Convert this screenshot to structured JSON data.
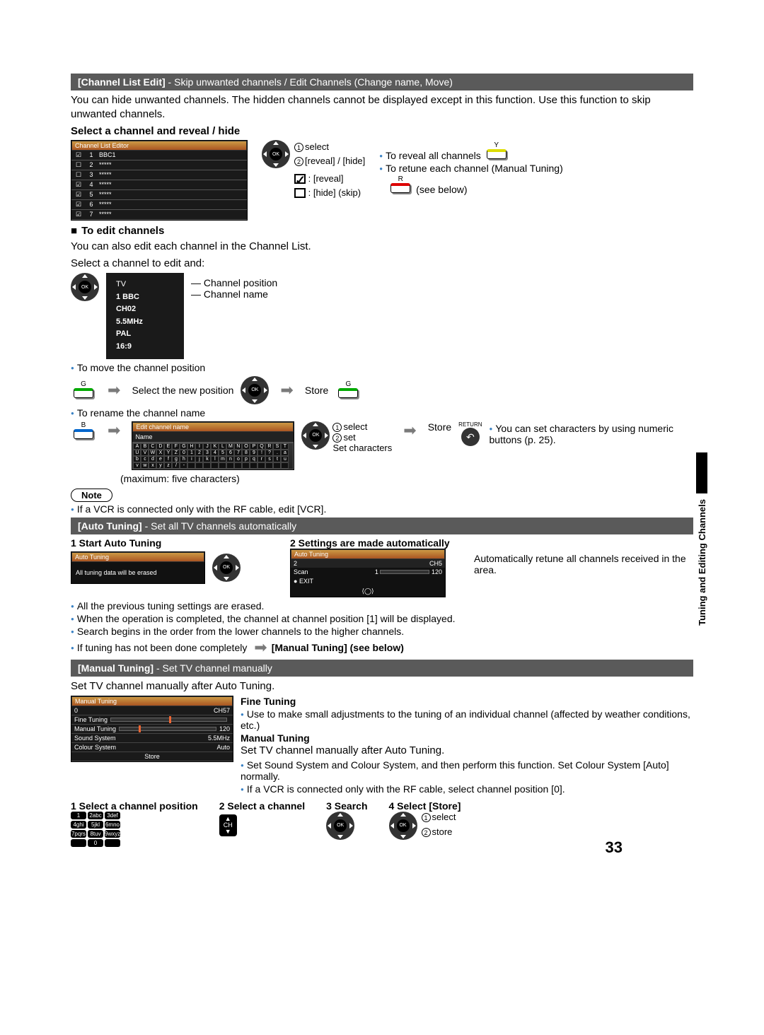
{
  "page_number": "33",
  "side_tab": "Tuning and Editing Channels",
  "header1": {
    "title": "[Channel List Edit]",
    "desc": " - Skip unwanted channels / Edit Channels (Change name, Move)"
  },
  "intro": "You can hide unwanted channels. The hidden channels cannot be displayed except in this function. Use this function to skip unwanted channels.",
  "sect1_title": "Select a channel and reveal / hide",
  "channel_editor": {
    "title": "Channel List Editor",
    "title_bg": "#b8863b",
    "rows": [
      {
        "i": "☑",
        "n": "1",
        "name": "BBC1"
      },
      {
        "i": "☐",
        "n": "2",
        "name": "*****"
      },
      {
        "i": "☐",
        "n": "3",
        "name": "*****"
      },
      {
        "i": "☑",
        "n": "4",
        "name": "*****"
      },
      {
        "i": "☑",
        "n": "5",
        "name": "*****"
      },
      {
        "i": "☑",
        "n": "6",
        "name": "*****"
      },
      {
        "i": "☑",
        "n": "7",
        "name": "*****"
      }
    ]
  },
  "reveal_hide": {
    "l1": "select",
    "l2": "[reveal] / [hide]",
    "reveal": ": [reveal]",
    "hide": ": [hide] (skip)",
    "r1": "To reveal all channels",
    "r2": "To retune each channel (Manual Tuning)",
    "r3": "(see below)"
  },
  "edit_title": "To edit channels",
  "edit_intro1": "You can also edit each channel in the Channel List.",
  "edit_intro2": "Select a channel to edit and:",
  "edit_box": {
    "top": "TV",
    "line1": "1  BBC",
    "ch": "CH02",
    "mhz": "5.5MHz",
    "pal": "PAL",
    "ratio": "16:9"
  },
  "edit_ann1": "Channel position",
  "edit_ann2": "Channel name",
  "move_bullet": "To move the channel position",
  "move_text1": "Select the new position",
  "move_text2": "Store",
  "rename_bullet": "To rename the channel name",
  "rename_box_title": "Edit channel name",
  "rename_box_sub": "Name",
  "rename_max": "(maximum: five characters)",
  "rename_ann1": "select",
  "rename_ann2": "set",
  "rename_ann3": "Set characters",
  "rename_store": "Store",
  "rename_tip1": "You can set characters by using numeric buttons (p. 25).",
  "rename_return": "RETURN",
  "note_label": "Note",
  "note_text": "If a VCR is connected only with the RF cable, edit [VCR].",
  "header2": {
    "title": "[Auto Tuning]",
    "desc": " - Set all TV channels automatically"
  },
  "at_step1_title": "1 Start Auto Tuning",
  "at_box1_title": "Auto Tuning",
  "at_box1_text": "All tuning data will be erased",
  "at_step2_title": "2 Settings are made automatically",
  "at_box2_title": "Auto Tuning",
  "at_box2_scan": "Scan",
  "at_box2_ch": "CH5",
  "at_box2_val": "1",
  "at_box2_max": "120",
  "at_box2_exit": "EXIT",
  "at_right": "Automatically retune all channels received in the area.",
  "at_b1": "All the previous tuning settings are erased.",
  "at_b2": "When the operation is completed, the channel at channel position [1] will be displayed.",
  "at_b3": "Search begins in the order from the lower channels to the higher channels.",
  "at_b4a": "If tuning has not been done completely ",
  "at_b4b": "[Manual Tuning] (see below)",
  "header3": {
    "title": "[Manual Tuning]",
    "desc": " - Set TV channel manually"
  },
  "mt_intro": "Set TV channel manually after Auto Tuning.",
  "mt_box_title": "Manual Tuning",
  "mt_rows": {
    "r0_l": "0",
    "r0_r": "CH57",
    "r1": "Fine Tuning",
    "r2_l": "Manual Tuning",
    "r2_r": "120",
    "r3_l": "Sound System",
    "r3_r": "5.5MHz",
    "r4_l": "Colour System",
    "r4_r": "Auto",
    "store": "Store"
  },
  "ft_title": "Fine Tuning",
  "ft_text": "Use to make small adjustments to the tuning of an individual channel (affected by weather conditions, etc.)",
  "mt_title2": "Manual Tuning",
  "mt_t1": "Set TV channel manually after Auto Tuning.",
  "mt_t2": "Set Sound System and Colour System, and then perform this function. Set Colour System [Auto] normally.",
  "mt_t3": "If a VCR is connected only with the RF cable, select channel position [0].",
  "steps": {
    "s1": "1 Select a channel position",
    "s2": "2 Select a channel",
    "s3": "3 Search",
    "s4": "4 Select [Store]",
    "s4_a1": "select",
    "s4_a2": "store"
  }
}
